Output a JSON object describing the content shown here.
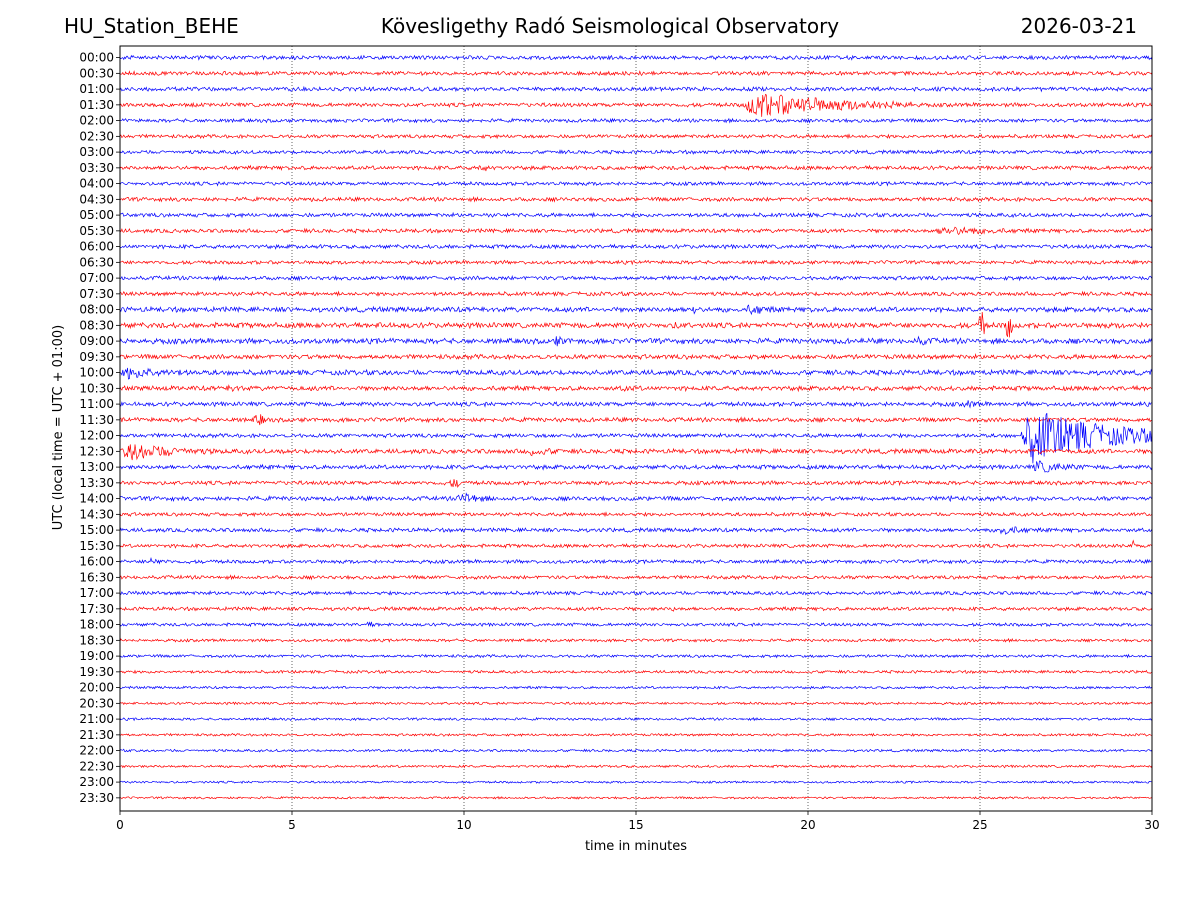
{
  "header": {
    "station": "HU_Station_BEHE",
    "title": "Kövesligethy Radó Seismological Observatory",
    "date": "2026-03-21"
  },
  "chart_data": {
    "type": "line",
    "xlabel": "time in minutes",
    "ylabel": "UTC (local time = UTC + 01:00)",
    "xlim": [
      0,
      30
    ],
    "x_ticks": [
      0,
      5,
      10,
      15,
      20,
      25,
      30
    ],
    "vertical_gridlines": true,
    "trace_colors": [
      "#0000ff",
      "#ff0000"
    ],
    "rows": [
      "00:00",
      "00:30",
      "01:00",
      "01:30",
      "02:00",
      "02:30",
      "03:00",
      "03:30",
      "04:00",
      "04:30",
      "05:00",
      "05:30",
      "06:00",
      "06:30",
      "07:00",
      "07:30",
      "08:00",
      "08:30",
      "09:00",
      "09:30",
      "10:00",
      "10:30",
      "11:00",
      "11:30",
      "12:00",
      "12:30",
      "13:00",
      "13:30",
      "14:00",
      "14:30",
      "15:00",
      "15:30",
      "16:00",
      "16:30",
      "17:00",
      "17:30",
      "18:00",
      "18:30",
      "19:00",
      "19:30",
      "20:00",
      "20:30",
      "21:00",
      "21:30",
      "22:00",
      "22:30",
      "23:00",
      "23:30"
    ],
    "noise_levels": [
      2.2,
      2.2,
      2.2,
      2.2,
      2.0,
      2.0,
      2.0,
      2.2,
      2.0,
      2.2,
      2.2,
      2.2,
      2.2,
      2.0,
      2.2,
      2.2,
      2.8,
      3.0,
      3.0,
      2.6,
      2.8,
      2.6,
      2.4,
      2.4,
      2.2,
      2.6,
      2.4,
      2.2,
      2.4,
      2.0,
      2.2,
      2.0,
      2.0,
      2.0,
      2.0,
      2.0,
      1.8,
      1.6,
      1.6,
      1.6,
      1.4,
      1.4,
      1.4,
      1.4,
      1.4,
      1.4,
      1.2,
      1.2
    ],
    "events": [
      {
        "row": 3,
        "start": 18.1,
        "end": 23.0,
        "amp": 14
      },
      {
        "row": 7,
        "start": 10.3,
        "end": 10.8,
        "amp": 4
      },
      {
        "row": 11,
        "start": 23.6,
        "end": 28.0,
        "amp": 5
      },
      {
        "row": 16,
        "start": 16.6,
        "end": 16.8,
        "amp": 7
      },
      {
        "row": 16,
        "start": 18.2,
        "end": 19.5,
        "amp": 7
      },
      {
        "row": 17,
        "start": 7.4,
        "end": 7.8,
        "amp": 4
      },
      {
        "row": 17,
        "start": 16.0,
        "end": 18.0,
        "amp": 4
      },
      {
        "row": 17,
        "start": 24.9,
        "end": 25.2,
        "amp": 14
      },
      {
        "row": 17,
        "start": 25.7,
        "end": 26.0,
        "amp": 14
      },
      {
        "row": 18,
        "start": 12.6,
        "end": 13.5,
        "amp": 6
      },
      {
        "row": 18,
        "start": 23.0,
        "end": 25.0,
        "amp": 5
      },
      {
        "row": 20,
        "start": 0.0,
        "end": 3.0,
        "amp": 7
      },
      {
        "row": 21,
        "start": 3.0,
        "end": 4.8,
        "amp": 4
      },
      {
        "row": 21,
        "start": 14.5,
        "end": 15.8,
        "amp": 4
      },
      {
        "row": 22,
        "start": 24.5,
        "end": 25.5,
        "amp": 5
      },
      {
        "row": 23,
        "start": 3.8,
        "end": 4.3,
        "amp": 6
      },
      {
        "row": 23,
        "start": 18.3,
        "end": 19.2,
        "amp": 4
      },
      {
        "row": 24,
        "start": 26.2,
        "end": 30.0,
        "amp": 30
      },
      {
        "row": 25,
        "start": 0.0,
        "end": 3.0,
        "amp": 10
      },
      {
        "row": 25,
        "start": 11.8,
        "end": 13.8,
        "amp": 5
      },
      {
        "row": 26,
        "start": 26.5,
        "end": 28.5,
        "amp": 7
      },
      {
        "row": 27,
        "start": 9.5,
        "end": 10.0,
        "amp": 5
      },
      {
        "row": 28,
        "start": 9.8,
        "end": 11.0,
        "amp": 8
      },
      {
        "row": 28,
        "start": 24.0,
        "end": 25.0,
        "amp": 4
      },
      {
        "row": 30,
        "start": 25.5,
        "end": 27.0,
        "amp": 6
      },
      {
        "row": 31,
        "start": 29.4,
        "end": 29.5,
        "amp": 6
      },
      {
        "row": 32,
        "start": 0.8,
        "end": 2.0,
        "amp": 4
      },
      {
        "row": 34,
        "start": 17.0,
        "end": 18.5,
        "amp": 3
      },
      {
        "row": 35,
        "start": 16.0,
        "end": 16.6,
        "amp": 3
      },
      {
        "row": 36,
        "start": 7.0,
        "end": 7.6,
        "amp": 3
      }
    ]
  }
}
